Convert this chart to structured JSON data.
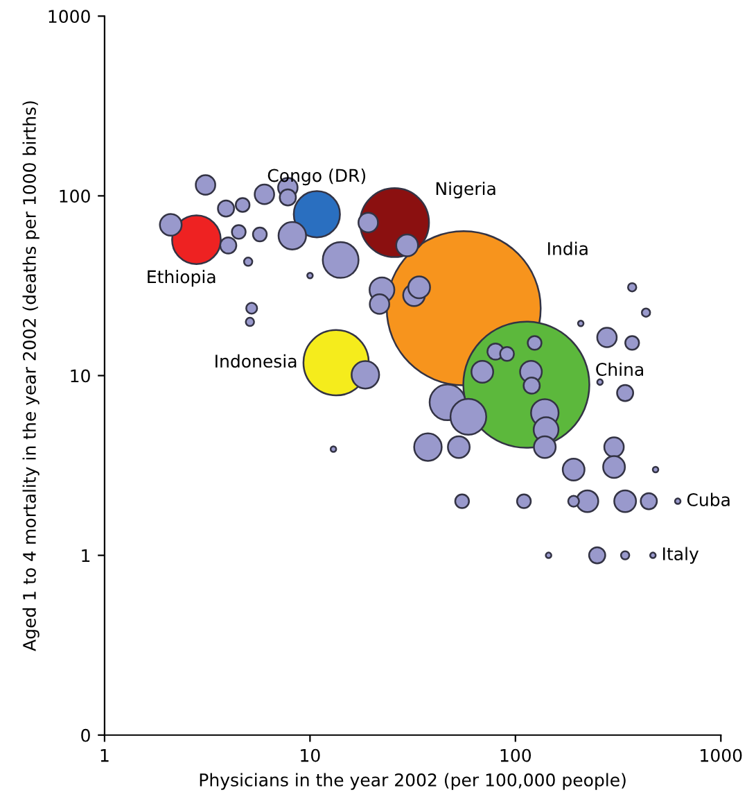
{
  "chart_data": {
    "type": "bubble",
    "xlabel": "Physicians in the year 2002 (per 100,000 people)",
    "ylabel": "Aged 1 to 4 mortality in the year 2002 (deaths per 1000 births)",
    "log": "xy",
    "xlim": [
      1,
      1000
    ],
    "ylim": [
      0.1,
      1000
    ],
    "xticks": [
      1,
      10,
      100,
      1000
    ],
    "yticks": [
      {
        "value": 0.1,
        "label": "0"
      },
      1,
      10,
      100,
      1000
    ],
    "grid": false,
    "legend": false,
    "marker": "circle",
    "series": [
      {
        "name": "India",
        "color": "#f7941d",
        "x": [
          56
        ],
        "values": [
          23.7
        ],
        "sizes": [
          1
        ]
      },
      {
        "name": "China",
        "color": "#5cb83c",
        "x": [
          113
        ],
        "values": [
          8.9
        ],
        "sizes": [
          0.67
        ]
      },
      {
        "name": "Nigeria",
        "color": "#8b1010",
        "x": [
          25.8
        ],
        "values": [
          71
        ],
        "sizes": [
          0.2
        ]
      },
      {
        "name": "Indonesia",
        "color": "#f5ec1c",
        "x": [
          13.4
        ],
        "values": [
          11.8
        ],
        "sizes": [
          0.18
        ]
      },
      {
        "name": "Ethiopia",
        "color": "#ee2222",
        "x": [
          2.8
        ],
        "values": [
          57
        ],
        "sizes": [
          0.1
        ]
      },
      {
        "name": "Congo (DR)",
        "color": "#2a6fc0",
        "x": [
          10.8
        ],
        "values": [
          79
        ],
        "sizes": [
          0.09
        ]
      },
      {
        "name": "Cuba",
        "color": "#9999cc",
        "x": [
          617
        ],
        "values": [
          2
        ],
        "sizes": [
          0.0013
        ]
      },
      {
        "name": "Italy",
        "color": "#9999cc",
        "x": [
          467
        ],
        "values": [
          1
        ],
        "sizes": [
          0.0013
        ]
      },
      {
        "color": "#9999cc",
        "x": [
          3.1,
          2.1,
          3.9,
          4.7,
          6.0,
          7.8,
          7.8,
          4.5,
          5.7,
          4.0,
          8.2,
          5.0,
          14.1,
          19.2,
          29.7,
          22.4,
          21.8,
          32.1,
          5.2,
          5.1,
          18.6,
          10,
          34,
          80,
          91,
          69,
          46.7,
          59,
          37.5,
          53,
          119,
          120,
          139,
          141,
          139,
          124,
          279,
          370,
          342,
          302,
          302,
          192,
          55,
          110,
          224,
          342,
          446,
          192,
          250,
          145,
          342,
          370,
          432,
          208,
          258,
          481,
          13
        ],
        "values": [
          115,
          69,
          85,
          89,
          102,
          111,
          98,
          63,
          61,
          53,
          60,
          43,
          44,
          71,
          53,
          30,
          25,
          28,
          23.7,
          19.9,
          10.1,
          36,
          31,
          13.6,
          13.2,
          10.5,
          7.1,
          5.9,
          4.0,
          4.0,
          10.5,
          8.8,
          6.2,
          5.0,
          4.0,
          15.2,
          16.3,
          15.2,
          8.0,
          4.0,
          3.1,
          3.0,
          2.0,
          2.0,
          2.0,
          2.0,
          2.0,
          2.0,
          1,
          1,
          1,
          31,
          22.4,
          19.5,
          9.2,
          3.0,
          3.9
        ],
        "sizes": [
          0.016,
          0.02,
          0.011,
          0.008,
          0.016,
          0.016,
          0.011,
          0.008,
          0.008,
          0.011,
          0.032,
          0.0029,
          0.054,
          0.016,
          0.02,
          0.026,
          0.016,
          0.02,
          0.005,
          0.0029,
          0.032,
          0.0013,
          0.02,
          0.011,
          0.008,
          0.02,
          0.054,
          0.054,
          0.032,
          0.02,
          0.02,
          0.011,
          0.032,
          0.026,
          0.02,
          0.008,
          0.016,
          0.008,
          0.011,
          0.016,
          0.02,
          0.02,
          0.008,
          0.008,
          0.02,
          0.02,
          0.011,
          0.005,
          0.011,
          0.0013,
          0.0029,
          0.0029,
          0.0029,
          0.0013,
          0.0013,
          0.0013,
          0.0013
        ]
      }
    ]
  }
}
